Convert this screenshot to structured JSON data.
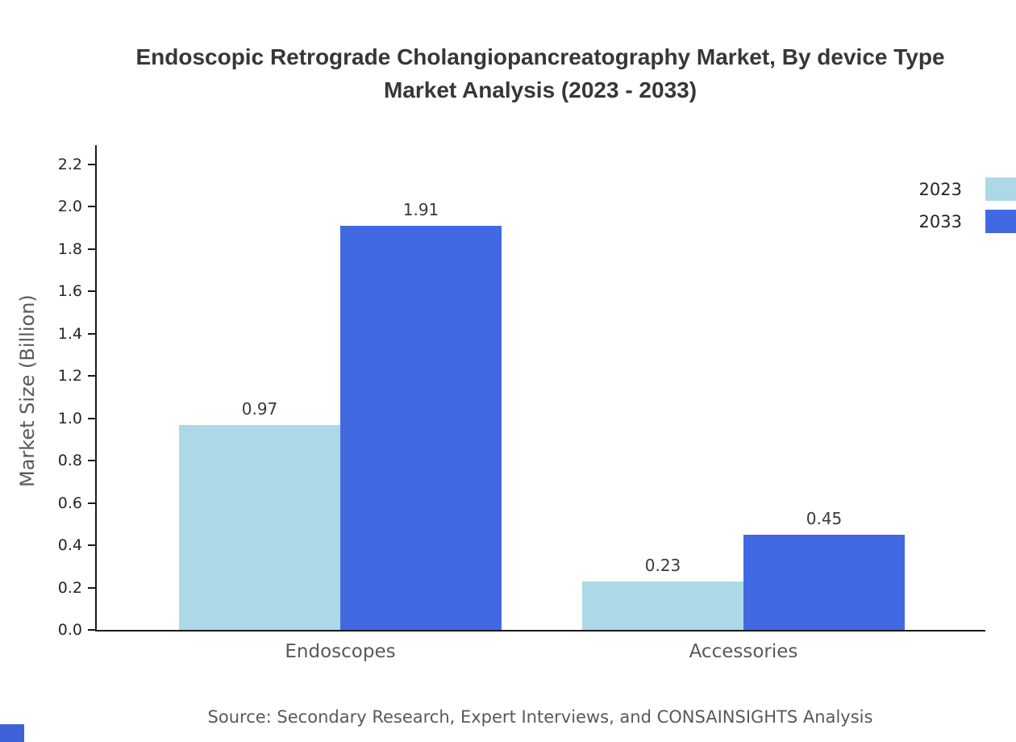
{
  "header": {
    "title_line1": "Endoscopic Retrograde Cholangiopancreatography Market, By device Type",
    "title_line2": "Market Analysis (2023 - 2033)"
  },
  "chart_data": {
    "type": "bar",
    "title": "Endoscopic Retrograde Cholangiopancreatography Market, By device Type Market Analysis (2023 - 2033)",
    "categories": [
      "Endoscopes",
      "Accessories"
    ],
    "series": [
      {
        "name": "2023",
        "color": "#add8e6",
        "values": [
          0.97,
          0.23
        ]
      },
      {
        "name": "2033",
        "color": "#4169e1",
        "values": [
          1.91,
          0.45
        ]
      }
    ],
    "xlabel": "",
    "ylabel": "Market Size (Billion)",
    "ylim": [
      0,
      2.2
    ],
    "yticks": [
      "0.0",
      "0.2",
      "0.4",
      "0.6",
      "0.8",
      "1.0",
      "1.2",
      "1.4",
      "1.6",
      "1.8",
      "2.0",
      "2.2"
    ],
    "grid": false,
    "legend_position": "top-right",
    "value_label_format": "0.00"
  },
  "footer": {
    "source": "Source: Secondary Research, Expert Interviews, and CONSAINSIGHTS Analysis",
    "accent_color": "#4062d8"
  }
}
